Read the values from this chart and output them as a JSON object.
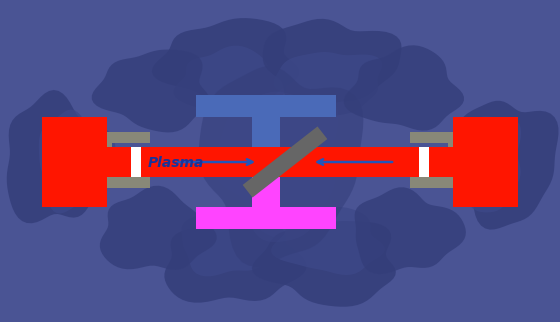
{
  "bg_color": "#4a5494",
  "fig_width": 5.6,
  "fig_height": 3.22,
  "dpi": 100,
  "gun_color": "#ff1500",
  "holder_color": "#888878",
  "gap_color": "#ffffff",
  "sample_color": "#666666",
  "arrow_color": "#2255bb",
  "blob_dark": "#343e7a",
  "blob_mid": "#3d4888",
  "plasma_text": "Plasma",
  "plasma_text_color": "#1a3399",
  "plasma_fontsize": 10,
  "blue_bar_color": "#4a6ab8",
  "magenta_bar_color": "#ff44ff"
}
